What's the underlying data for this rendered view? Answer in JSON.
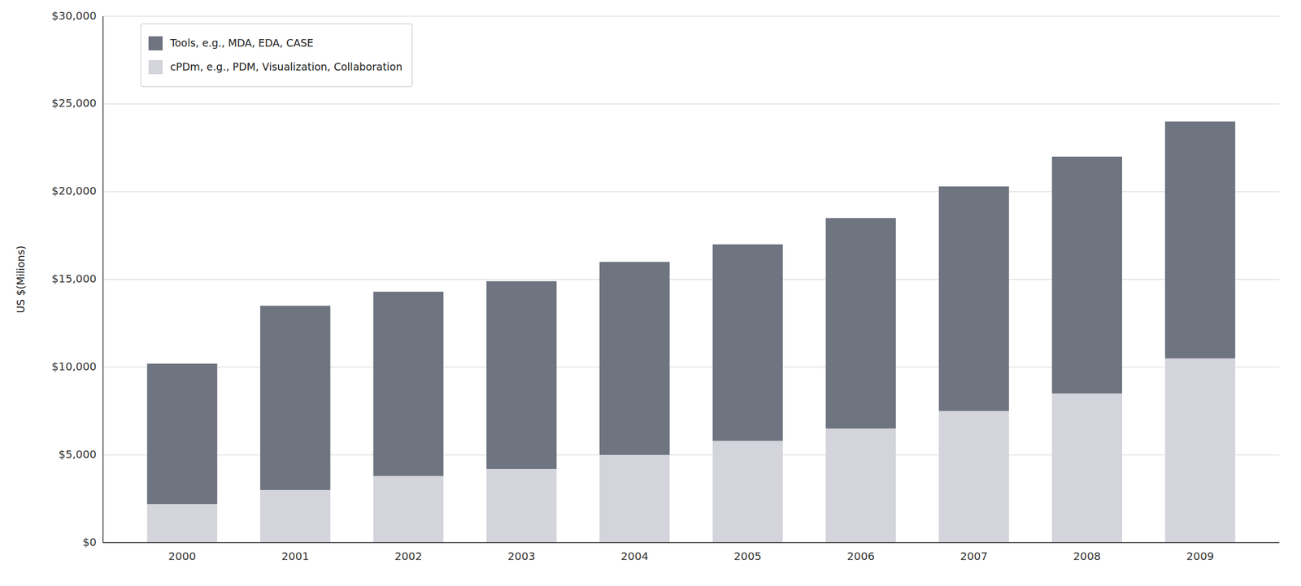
{
  "chart_data": {
    "type": "bar",
    "stacked": true,
    "categories": [
      "2000",
      "2001",
      "2002",
      "2003",
      "2004",
      "2005",
      "2006",
      "2007",
      "2008",
      "2009"
    ],
    "series": [
      {
        "name": "cPDm, e.g., PDM, Visualization, Collaboration",
        "color": "#d4d4dc",
        "values": [
          2200,
          3000,
          3800,
          4200,
          5000,
          5800,
          6500,
          7500,
          8500,
          10500
        ]
      },
      {
        "name": "Tools, e.g., MDA, EDA, CASE",
        "color": "#6e7480",
        "values": [
          8000,
          10500,
          10500,
          10700,
          11000,
          11200,
          12000,
          12800,
          13500,
          13500
        ]
      }
    ],
    "y_label": "US $(Milions)",
    "ylim": [
      0,
      30000
    ],
    "yticks": [
      {
        "value": 0,
        "label": "$0"
      },
      {
        "value": 5000,
        "label": "$5,000"
      },
      {
        "value": 10000,
        "label": "$10,000"
      },
      {
        "value": 15000,
        "label": "$15,000"
      },
      {
        "value": 20000,
        "label": "$20,000"
      },
      {
        "value": 25000,
        "label": "$25,000"
      },
      {
        "value": 30000,
        "label": "$30,000"
      }
    ],
    "grid": true,
    "legend": "upper left"
  }
}
